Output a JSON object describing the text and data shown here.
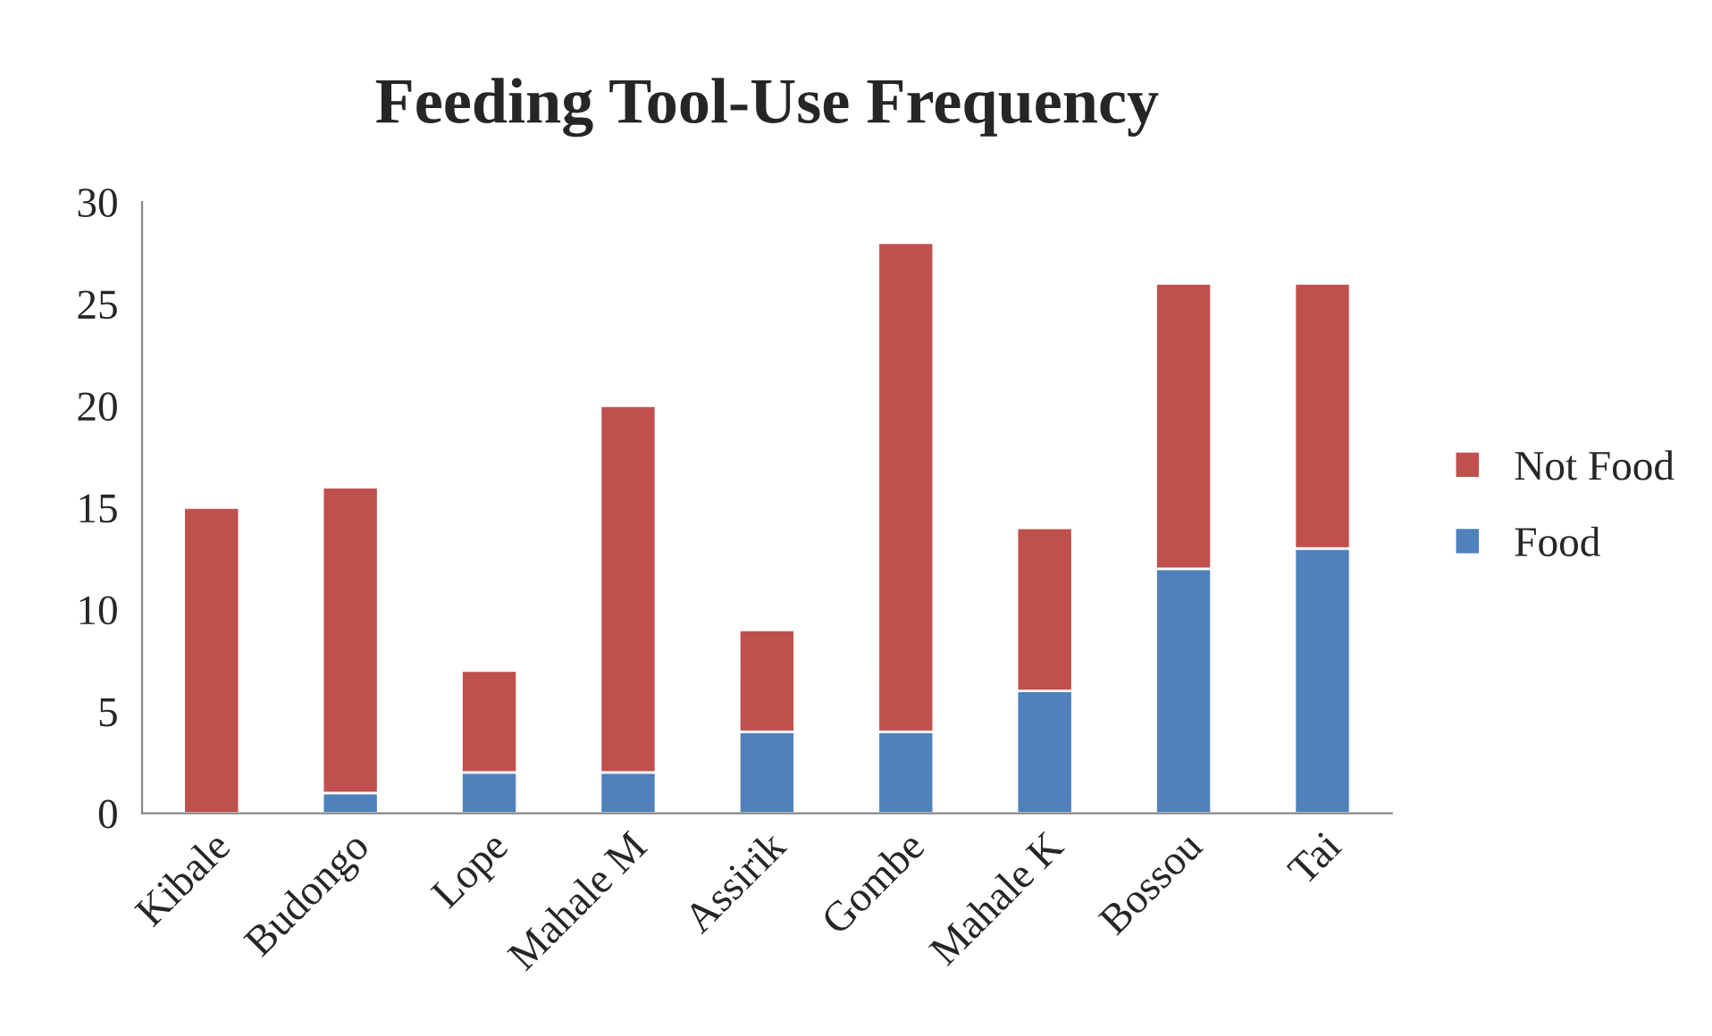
{
  "chart_data": {
    "type": "bar",
    "title": "Feeding Tool-Use Frequency",
    "stacked": true,
    "legend": "right",
    "grid": false,
    "categories": [
      "Kibale",
      "Budongo",
      "Lope",
      "Mahale M",
      "Assirik",
      "Gombe",
      "Mahale K",
      "Bossou",
      "Tai"
    ],
    "series": [
      {
        "name": "Food",
        "color": "#4f81bd",
        "values": [
          0,
          1,
          2,
          2,
          4,
          4,
          6,
          12,
          13
        ]
      },
      {
        "name": "Not Food",
        "color": "#c0504d",
        "values": [
          15,
          15,
          5,
          18,
          5,
          24,
          8,
          14,
          13
        ]
      }
    ],
    "ylim": [
      0,
      30
    ],
    "yticks": [
      0,
      5,
      10,
      15,
      20,
      25,
      30
    ]
  }
}
